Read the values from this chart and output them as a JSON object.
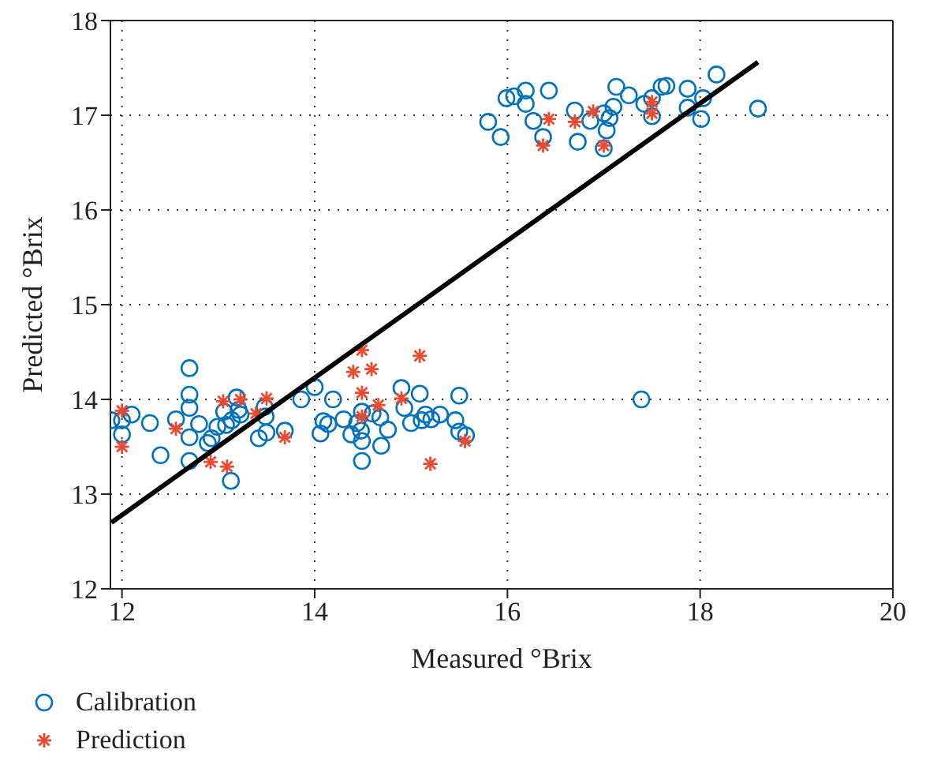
{
  "chart_data": {
    "type": "scatter",
    "xlabel": "Measured °Brix",
    "ylabel": "Predicted °Brix",
    "xlim": [
      11.88,
      20
    ],
    "ylim": [
      12,
      18
    ],
    "xticks": [
      12,
      14,
      16,
      18,
      20
    ],
    "yticks": [
      12,
      13,
      14,
      15,
      16,
      17,
      18
    ],
    "grid": true,
    "legend": "bottom left",
    "series": [
      {
        "name": "Calibration",
        "color": "#0072bd",
        "marker": "circle",
        "x": [
          11.89,
          12.0,
          12.0,
          12.1,
          12.29,
          12.4,
          12.56,
          12.7,
          12.7,
          12.7,
          12.7,
          12.7,
          12.8,
          12.89,
          12.93,
          12.99,
          13.06,
          13.08,
          13.13,
          13.14,
          13.19,
          13.21,
          13.23,
          13.42,
          13.48,
          13.49,
          13.5,
          13.69,
          13.86,
          14.0,
          14.06,
          14.09,
          14.14,
          14.19,
          14.3,
          14.38,
          14.44,
          14.48,
          14.49,
          14.49,
          14.49,
          14.6,
          14.68,
          14.69,
          14.76,
          14.9,
          14.93,
          15.0,
          15.09,
          15.11,
          15.15,
          15.21,
          15.3,
          15.46,
          15.5,
          15.5,
          15.57,
          17.39,
          15.8,
          15.93,
          15.99,
          16.07,
          16.19,
          16.19,
          16.27,
          16.37,
          16.43,
          16.7,
          16.73,
          16.86,
          17.0,
          17.03,
          17.0,
          17.06,
          17.1,
          17.13,
          17.26,
          17.42,
          17.5,
          17.5,
          17.6,
          17.65,
          17.87,
          17.87,
          18.01,
          18.03,
          18.17,
          18.6
        ],
        "values": [
          13.78,
          13.78,
          13.63,
          13.84,
          13.75,
          13.41,
          13.79,
          14.33,
          14.05,
          13.91,
          13.6,
          13.35,
          13.74,
          13.54,
          13.59,
          13.71,
          13.87,
          13.73,
          13.14,
          13.78,
          14.02,
          13.89,
          13.84,
          13.59,
          13.92,
          13.82,
          13.65,
          13.67,
          14.0,
          14.13,
          13.64,
          13.77,
          13.74,
          14.0,
          13.79,
          13.63,
          13.75,
          13.67,
          13.87,
          13.56,
          13.35,
          13.85,
          13.81,
          13.51,
          13.68,
          14.12,
          13.91,
          13.75,
          14.06,
          13.78,
          13.84,
          13.79,
          13.84,
          13.78,
          14.04,
          13.66,
          13.62,
          14.0,
          16.93,
          16.77,
          17.18,
          17.2,
          17.26,
          17.12,
          16.94,
          16.77,
          17.26,
          17.05,
          16.72,
          16.94,
          17.02,
          16.84,
          16.65,
          16.97,
          17.09,
          17.3,
          17.21,
          17.12,
          17.18,
          16.99,
          17.3,
          17.31,
          17.28,
          17.08,
          16.96,
          17.18,
          17.43,
          17.07
        ]
      },
      {
        "name": "Prediction",
        "color": "#ea4a30",
        "marker": "cross",
        "x": [
          12.0,
          12.0,
          12.56,
          12.92,
          13.05,
          13.09,
          13.23,
          13.39,
          13.5,
          13.69,
          14.4,
          14.49,
          14.59,
          14.49,
          14.49,
          14.66,
          14.9,
          15.09,
          15.2,
          15.56,
          16.37,
          16.43,
          16.7,
          16.89,
          17.0,
          17.5,
          17.5
        ],
        "values": [
          13.88,
          13.5,
          13.69,
          13.34,
          13.98,
          13.29,
          14.0,
          13.85,
          14.01,
          13.6,
          14.29,
          14.52,
          14.32,
          14.07,
          13.82,
          13.94,
          14.01,
          14.46,
          13.32,
          13.56,
          16.68,
          16.96,
          16.93,
          17.04,
          16.68,
          17.14,
          17.02
        ]
      },
      {
        "type": "line",
        "color": "#000000",
        "marker": "none",
        "line_style": "solid",
        "x": [
          11.89,
          18.6
        ],
        "values": [
          12.7,
          17.56
        ]
      }
    ]
  }
}
